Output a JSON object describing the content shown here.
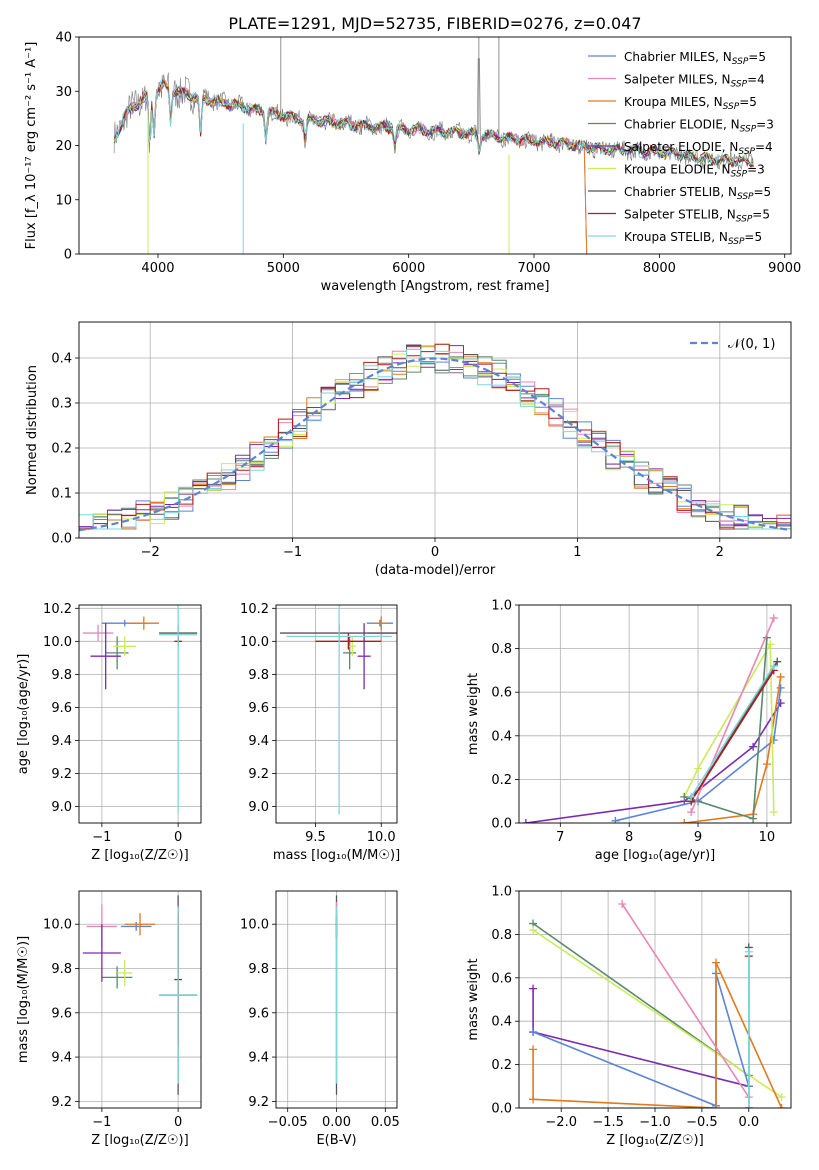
{
  "figure": {
    "title": "PLATE=1291, MJD=52735, FIBERID=0276, z=0.047"
  },
  "colors": {
    "chabrier_miles": "#5b84d6",
    "salpeter_miles": "#e886b8",
    "kroupa_miles": "#e07a1f",
    "chabrier_elodie": "#5a8a6a",
    "salpeter_elodie": "#7a2bb0",
    "kroupa_elodie": "#c9ec5a",
    "chabrier_stelib": "#555555",
    "salpeter_stelib": "#b01a1a",
    "kroupa_stelib": "#7ed6dc",
    "spectrum": "#777777",
    "gauss": "#5b84d6"
  },
  "chart_data": [
    {
      "type": "line",
      "id": "spectrum",
      "xlabel": "wavelength [Angstrom, rest frame]",
      "ylabel": "Flux [f_λ 10⁻¹⁷ erg cm⁻² s⁻¹ A⁻¹]",
      "xlim": [
        3370,
        9050
      ],
      "ylim": [
        0,
        40
      ],
      "xticks": [
        4000,
        5000,
        6000,
        7000,
        8000,
        9000
      ],
      "yticks": [
        0,
        10,
        20,
        30,
        40
      ],
      "grid": false,
      "legend_position": "top-right",
      "legend": [
        {
          "label": "Chabrier MILES, N",
          "sub": "SSP",
          "tail": "=5",
          "color": "chabrier_miles"
        },
        {
          "label": "Salpeter MILES, N",
          "sub": "SSP",
          "tail": "=4",
          "color": "salpeter_miles"
        },
        {
          "label": "Kroupa MILES, N",
          "sub": "SSP",
          "tail": "=5",
          "color": "kroupa_miles"
        },
        {
          "label": "Chabrier ELODIE, N",
          "sub": "SSP",
          "tail": "=3",
          "color": "chabrier_elodie"
        },
        {
          "label": "Salpeter ELODIE, N",
          "sub": "SSP",
          "tail": "=4",
          "color": "salpeter_elodie"
        },
        {
          "label": "Kroupa ELODIE, N",
          "sub": "SSP",
          "tail": "=3",
          "color": "kroupa_elodie"
        },
        {
          "label": "Chabrier STELIB, N",
          "sub": "SSP",
          "tail": "=5",
          "color": "chabrier_stelib"
        },
        {
          "label": "Salpeter STELIB, N",
          "sub": "SSP",
          "tail": "=5",
          "color": "salpeter_stelib"
        },
        {
          "label": "Kroupa STELIB, N",
          "sub": "SSP",
          "tail": "=5",
          "color": "kroupa_stelib"
        }
      ],
      "continuum": [
        [
          3650,
          21
        ],
        [
          3750,
          26
        ],
        [
          3850,
          28
        ],
        [
          3950,
          30
        ],
        [
          4050,
          31
        ],
        [
          4150,
          30
        ],
        [
          4300,
          29
        ],
        [
          4500,
          28
        ],
        [
          4700,
          27
        ],
        [
          4900,
          26
        ],
        [
          5100,
          25
        ],
        [
          5300,
          24.5
        ],
        [
          5500,
          24
        ],
        [
          5700,
          23.5
        ],
        [
          6000,
          23
        ],
        [
          6300,
          22.5
        ],
        [
          6600,
          22
        ],
        [
          6900,
          21
        ],
        [
          7200,
          20.5
        ],
        [
          7500,
          19.5
        ],
        [
          7800,
          19
        ],
        [
          8100,
          18.5
        ],
        [
          8400,
          17.5
        ],
        [
          8750,
          17
        ]
      ]
    },
    {
      "type": "bar",
      "id": "residuals",
      "xlabel": "(data-model)/error",
      "ylabel": "Normed distribution",
      "xlim": [
        -2.5,
        2.5
      ],
      "ylim": [
        0,
        0.48
      ],
      "xticks": [
        -2,
        -1,
        0,
        1,
        2
      ],
      "yticks": [
        0.0,
        0.1,
        0.2,
        0.3,
        0.4
      ],
      "grid": true,
      "legend_position": "top-right",
      "legend_label": "𝒩(0, 1)",
      "bin_width": 0.1,
      "gauss_sigma": 1
    },
    {
      "type": "scatter",
      "id": "age_vs_Z",
      "xlabel": "Z [log₁₀(Z/Z☉)]",
      "ylabel": "age  [log₁₀(age/yr)]",
      "xlim": [
        -1.3,
        0.3
      ],
      "ylim": [
        8.9,
        10.22
      ],
      "xticks": [
        -1,
        0
      ],
      "yticks": [
        9.0,
        9.2,
        9.4,
        9.6,
        9.8,
        10.0,
        10.2
      ],
      "grid": true,
      "points": [
        {
          "x": -0.7,
          "y": 10.11,
          "xerr": 0.3,
          "yerr": 0.02,
          "color": "chabrier_miles"
        },
        {
          "x": -1.05,
          "y": 10.05,
          "xerr": 0.2,
          "yerr": 0.05,
          "color": "salpeter_miles"
        },
        {
          "x": -0.45,
          "y": 10.11,
          "xerr": 0.2,
          "yerr": 0.04,
          "color": "kroupa_miles"
        },
        {
          "x": -0.8,
          "y": 9.93,
          "xerr": 0.15,
          "yerr": 0.1,
          "color": "chabrier_elodie"
        },
        {
          "x": -0.95,
          "y": 9.91,
          "xerr": 0.2,
          "yerr": 0.2,
          "color": "salpeter_elodie"
        },
        {
          "x": -0.7,
          "y": 9.97,
          "xerr": 0.15,
          "yerr": 0.06,
          "color": "kroupa_elodie"
        },
        {
          "x": 0.0,
          "y": 10.05,
          "xerr": 0.25,
          "yerr": 0.05,
          "color": "chabrier_stelib"
        },
        {
          "x": 0.0,
          "y": 10.0,
          "xerr": 0.05,
          "yerr": 0.03,
          "color": "salpeter_stelib"
        },
        {
          "x": 0.0,
          "y": 10.04,
          "xerr": 0.25,
          "yerr": 1.08,
          "color": "kroupa_stelib"
        }
      ]
    },
    {
      "type": "scatter",
      "id": "age_vs_mass",
      "xlabel": "mass [log₁₀(M/M☉)]",
      "ylabel": "",
      "xlim": [
        9.2,
        10.12
      ],
      "ylim": [
        8.9,
        10.22
      ],
      "xticks": [
        9.5,
        10.0
      ],
      "yticks": [
        9.0,
        9.2,
        9.4,
        9.6,
        9.8,
        10.0,
        10.2
      ],
      "grid": true,
      "points": [
        {
          "x": 9.99,
          "y": 10.11,
          "xerr": 0.1,
          "yerr": 0.02,
          "color": "chabrier_miles"
        },
        {
          "x": 10.0,
          "y": 10.05,
          "xerr": 0.1,
          "yerr": 0.05,
          "color": "salpeter_miles"
        },
        {
          "x": 10.0,
          "y": 10.11,
          "xerr": 0.05,
          "yerr": 0.04,
          "color": "kroupa_miles"
        },
        {
          "x": 9.76,
          "y": 9.93,
          "xerr": 0.05,
          "yerr": 0.1,
          "color": "chabrier_elodie"
        },
        {
          "x": 9.87,
          "y": 9.91,
          "xerr": 0.05,
          "yerr": 0.2,
          "color": "salpeter_elodie"
        },
        {
          "x": 9.78,
          "y": 9.97,
          "xerr": 0.03,
          "yerr": 0.06,
          "color": "kroupa_elodie"
        },
        {
          "x": 9.68,
          "y": 10.05,
          "xerr": 0.45,
          "yerr": 0.05,
          "color": "chabrier_stelib"
        },
        {
          "x": 9.75,
          "y": 10.0,
          "xerr": 0.25,
          "yerr": 0.05,
          "color": "salpeter_stelib"
        },
        {
          "x": 9.68,
          "y": 10.03,
          "xerr": 0.4,
          "yerr": 1.08,
          "color": "kroupa_stelib"
        }
      ]
    },
    {
      "type": "line",
      "id": "weight_vs_age",
      "xlabel": "age  [log₁₀(age/yr)]",
      "ylabel": "mass weight",
      "xlim": [
        6.4,
        10.35
      ],
      "ylim": [
        0,
        1
      ],
      "xticks": [
        7,
        8,
        9,
        10
      ],
      "yticks": [
        0.0,
        0.2,
        0.4,
        0.6,
        0.8,
        1.0
      ],
      "grid": true,
      "series": [
        {
          "color": "salpeter_elodie",
          "points": [
            [
              6.5,
              0.0
            ],
            [
              8.8,
              0.1
            ],
            [
              9.8,
              0.35
            ],
            [
              10.2,
              0.55
            ]
          ]
        },
        {
          "color": "chabrier_miles",
          "points": [
            [
              7.8,
              0.01
            ],
            [
              9.0,
              0.1
            ],
            [
              10.1,
              0.38
            ],
            [
              10.2,
              0.62
            ]
          ]
        },
        {
          "color": "kroupa_miles",
          "points": [
            [
              8.8,
              0.0
            ],
            [
              9.8,
              0.04
            ],
            [
              10.0,
              0.27
            ],
            [
              10.2,
              0.67
            ]
          ]
        },
        {
          "color": "kroupa_elodie",
          "points": [
            [
              8.8,
              0.12
            ],
            [
              9.0,
              0.25
            ],
            [
              10.05,
              0.82
            ],
            [
              10.1,
              0.05
            ]
          ]
        },
        {
          "color": "chabrier_elodie",
          "points": [
            [
              8.8,
              0.12
            ],
            [
              9.8,
              0.02
            ],
            [
              10.0,
              0.85
            ]
          ]
        },
        {
          "color": "salpeter_miles",
          "points": [
            [
              8.9,
              0.05
            ],
            [
              10.1,
              0.94
            ]
          ]
        },
        {
          "color": "chabrier_stelib",
          "points": [
            [
              8.9,
              0.1
            ],
            [
              10.15,
              0.74
            ]
          ]
        },
        {
          "color": "salpeter_stelib",
          "points": [
            [
              8.9,
              0.1
            ],
            [
              10.1,
              0.7
            ]
          ]
        },
        {
          "color": "kroupa_stelib",
          "points": [
            [
              8.9,
              0.12
            ],
            [
              10.1,
              0.72
            ]
          ]
        }
      ]
    },
    {
      "type": "scatter",
      "id": "mass_vs_Z",
      "xlabel": "Z [log₁₀(Z/Z☉)]",
      "ylabel": "mass [log₁₀(M/M☉)]",
      "xlim": [
        -1.3,
        0.3
      ],
      "ylim": [
        9.17,
        10.15
      ],
      "xticks": [
        -1,
        0
      ],
      "yticks": [
        9.2,
        9.4,
        9.6,
        9.8,
        10.0
      ],
      "grid": true,
      "points": [
        {
          "x": -0.55,
          "y": 9.99,
          "xerr": 0.2,
          "yerr": 0.02,
          "color": "chabrier_miles"
        },
        {
          "x": -1.0,
          "y": 9.99,
          "xerr": 0.2,
          "yerr": 0.1,
          "color": "salpeter_miles"
        },
        {
          "x": -0.5,
          "y": 10.0,
          "xerr": 0.2,
          "yerr": 0.05,
          "color": "kroupa_miles"
        },
        {
          "x": -0.8,
          "y": 9.76,
          "xerr": 0.2,
          "yerr": 0.05,
          "color": "chabrier_elodie"
        },
        {
          "x": -1.0,
          "y": 9.87,
          "xerr": 0.25,
          "yerr": 0.13,
          "color": "salpeter_elodie"
        },
        {
          "x": -0.7,
          "y": 9.78,
          "xerr": 0.1,
          "yerr": 0.06,
          "color": "kroupa_elodie"
        },
        {
          "x": 0.0,
          "y": 9.68,
          "xerr": 0.25,
          "yerr": 0.45,
          "color": "chabrier_stelib"
        },
        {
          "x": 0.0,
          "y": 9.75,
          "xerr": 0.05,
          "yerr": 0.3,
          "color": "salpeter_stelib"
        },
        {
          "x": 0.0,
          "y": 9.68,
          "xerr": 0.25,
          "yerr": 0.4,
          "color": "kroupa_stelib"
        }
      ]
    },
    {
      "type": "scatter",
      "id": "mass_vs_ebv",
      "xlabel": "E(B-V)",
      "ylabel": "",
      "xlim": [
        -0.062,
        0.062
      ],
      "ylim": [
        9.17,
        10.15
      ],
      "xticks": [
        -0.05,
        0.0,
        0.05
      ],
      "yticks": [
        9.2,
        9.4,
        9.6,
        9.8,
        10.0
      ],
      "grid": true,
      "points": [
        {
          "x": 0.0,
          "y": 9.68,
          "xerr": 0.0,
          "yerr": 0.45,
          "color": "chabrier_stelib"
        },
        {
          "x": 0.0,
          "y": 10.0,
          "xerr": 0.0,
          "yerr": 0.1,
          "color": "salpeter_miles"
        },
        {
          "x": 0.0,
          "y": 9.99,
          "xerr": 0.0,
          "yerr": 0.05,
          "color": "salpeter_stelib"
        },
        {
          "x": 0.0,
          "y": 9.68,
          "xerr": 0.0,
          "yerr": 0.4,
          "color": "kroupa_stelib"
        }
      ]
    },
    {
      "type": "line",
      "id": "weight_vs_Z",
      "xlabel": "Z [log₁₀(Z/Z☉)]",
      "ylabel": "mass weight",
      "xlim": [
        -2.45,
        0.45
      ],
      "ylim": [
        0,
        1
      ],
      "xticks": [
        -2.0,
        -1.5,
        -1.0,
        -0.5,
        0.0
      ],
      "yticks": [
        0.0,
        0.2,
        0.4,
        0.6,
        0.8,
        1.0
      ],
      "grid": true,
      "series": [
        {
          "color": "chabrier_elodie",
          "points": [
            [
              -2.3,
              0.85
            ],
            [
              0.0,
              0.15
            ]
          ]
        },
        {
          "color": "kroupa_elodie",
          "points": [
            [
              -2.3,
              0.82
            ],
            [
              0.35,
              0.05
            ]
          ]
        },
        {
          "color": "salpeter_elodie",
          "points": [
            [
              -2.3,
              0.55
            ],
            [
              -2.3,
              0.35
            ],
            [
              0.0,
              0.1
            ]
          ]
        },
        {
          "color": "chabrier_miles",
          "points": [
            [
              -2.3,
              0.35
            ],
            [
              -0.35,
              0.01
            ],
            [
              -0.35,
              0.62
            ],
            [
              0.0,
              0.1
            ]
          ]
        },
        {
          "color": "kroupa_miles",
          "points": [
            [
              -2.3,
              0.27
            ],
            [
              -2.3,
              0.04
            ],
            [
              -0.35,
              0.0
            ],
            [
              -0.35,
              0.67
            ],
            [
              0.35,
              0.0
            ]
          ]
        },
        {
          "color": "salpeter_miles",
          "points": [
            [
              -1.35,
              0.94
            ],
            [
              0.0,
              0.05
            ]
          ]
        },
        {
          "color": "chabrier_stelib",
          "points": [
            [
              0.0,
              0.74
            ],
            [
              0.0,
              0.0
            ]
          ]
        },
        {
          "color": "salpeter_stelib",
          "points": [
            [
              0.0,
              0.7
            ],
            [
              0.0,
              0.0
            ]
          ]
        },
        {
          "color": "kroupa_stelib",
          "points": [
            [
              0.0,
              0.72
            ],
            [
              0.0,
              0.0
            ]
          ]
        }
      ]
    }
  ]
}
